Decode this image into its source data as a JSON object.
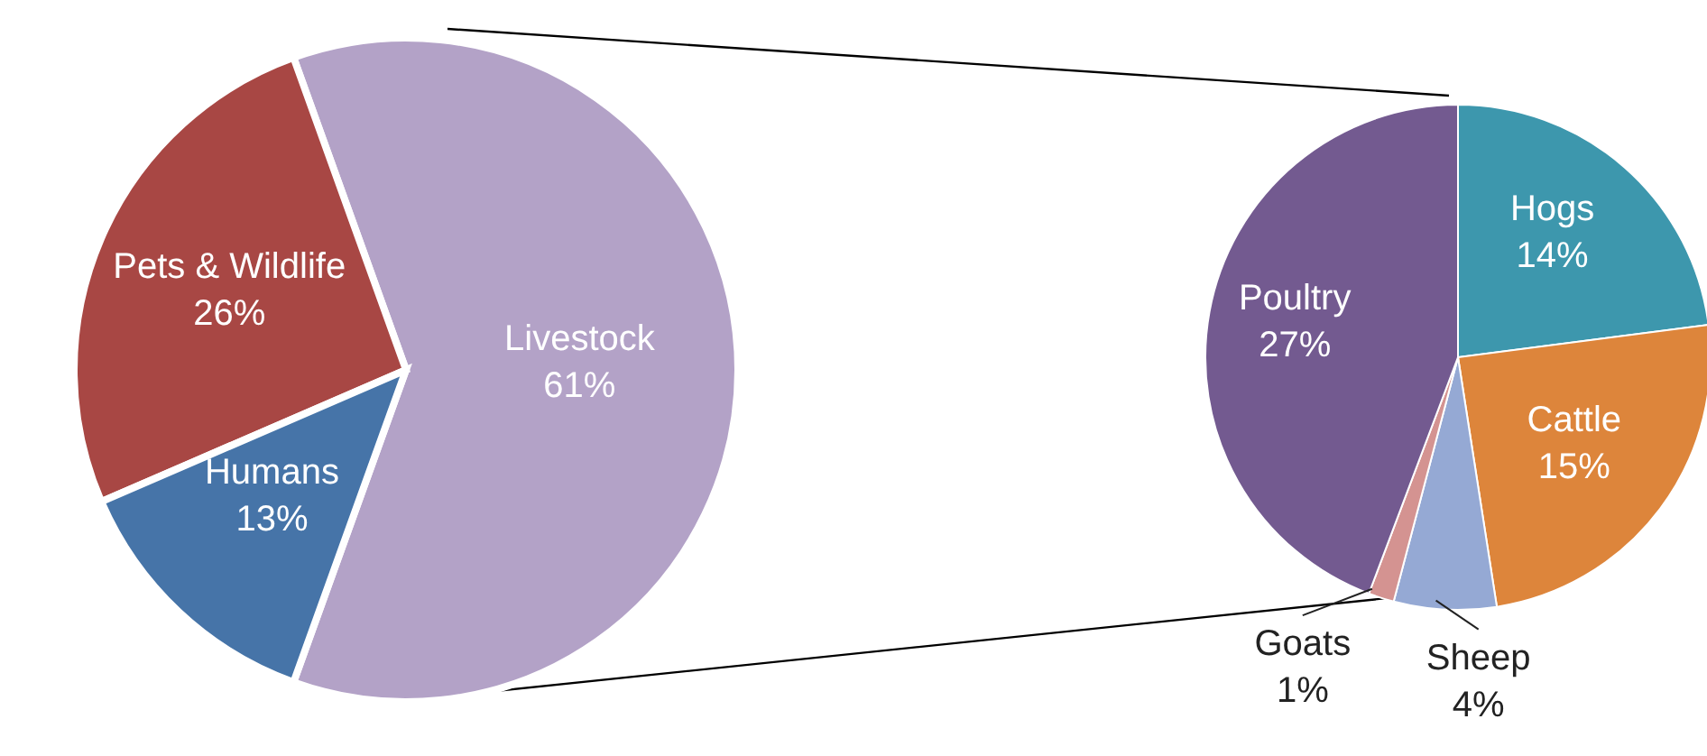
{
  "chart_data": [
    {
      "type": "pie",
      "categories": [
        "Livestock",
        "Pets & Wildlife",
        "Humans"
      ],
      "values": [
        61,
        26,
        13
      ],
      "value_labels": [
        "61%",
        "26%",
        "13%"
      ],
      "colors": [
        "#b3a2c7",
        "#a84744",
        "#4674a8"
      ],
      "legend": false
    },
    {
      "type": "pie",
      "categories": [
        "Hogs",
        "Cattle",
        "Sheep",
        "Goats",
        "Poultry"
      ],
      "values": [
        14,
        15,
        4,
        1,
        27
      ],
      "value_labels": [
        "14%",
        "15%",
        "4%",
        "1%",
        "27%"
      ],
      "colors": [
        "#3d97ad",
        "#dd853b",
        "#95a9d4",
        "#d49391",
        "#735a90"
      ],
      "legend": false
    }
  ]
}
